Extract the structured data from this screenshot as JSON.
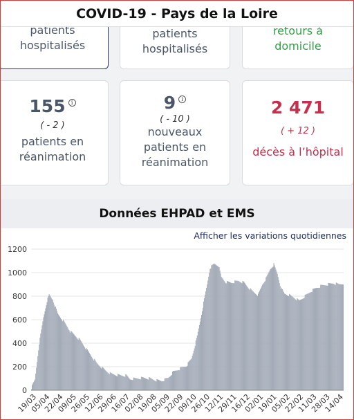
{
  "header": {
    "title": "COVID-19 - Pays de la Loire"
  },
  "cards_row1": [
    {
      "label_lines": [
        "patients",
        "hospitalisés"
      ],
      "selected": true
    },
    {
      "label_lines": [
        "patients",
        "hospitalisés"
      ]
    },
    {
      "label_lines": [
        "retours à",
        "domicile"
      ]
    }
  ],
  "cards_row2": [
    {
      "value": "155",
      "delta": "( - 2 )",
      "label_lines": [
        "patients en",
        "réanimation"
      ],
      "info": "i"
    },
    {
      "value": "9",
      "delta": "( - 10 )",
      "label_lines": [
        "nouveaux",
        "patients en",
        "réanimation"
      ],
      "info": "i"
    },
    {
      "value": "2 471",
      "delta": "( + 12 )",
      "label_lines": [
        "décès à l’hôpital"
      ]
    }
  ],
  "section": {
    "title": "Données EHPAD et EMS"
  },
  "chart_link": "Afficher les variations quotidiennes",
  "colors": {
    "bar": "#a3abb7",
    "red": "#c62f4d",
    "green": "#2f9f47",
    "text": "#4a5668"
  },
  "chart_data": {
    "type": "bar",
    "title": "",
    "xlabel": "",
    "ylabel": "",
    "ylim": [
      0,
      1200
    ],
    "yticks": [
      0,
      200,
      400,
      600,
      800,
      1000,
      1200
    ],
    "xtick_labels": [
      "19/03",
      "05/04",
      "22/04",
      "09/05",
      "26/05",
      "12/06",
      "29/06",
      "16/07",
      "02/08",
      "19/08",
      "05/09",
      "22/09",
      "09/10",
      "26/10",
      "12/11",
      "29/11",
      "16/12",
      "02/01",
      "19/01",
      "05/02",
      "22/02",
      "11/03",
      "28/03",
      "14/04"
    ],
    "anchors": [
      [
        0,
        20
      ],
      [
        5,
        90
      ],
      [
        11,
        400
      ],
      [
        17,
        620
      ],
      [
        22,
        760
      ],
      [
        25,
        810
      ],
      [
        30,
        770
      ],
      [
        37,
        650
      ],
      [
        45,
        590
      ],
      [
        55,
        500
      ],
      [
        68,
        430
      ],
      [
        80,
        330
      ],
      [
        92,
        230
      ],
      [
        104,
        170
      ],
      [
        112,
        140
      ],
      [
        120,
        130
      ],
      [
        128,
        125
      ],
      [
        134,
        125
      ],
      [
        139,
        95
      ],
      [
        148,
        100
      ],
      [
        158,
        105
      ],
      [
        167,
        100
      ],
      [
        176,
        85
      ],
      [
        184,
        80
      ],
      [
        193,
        105
      ],
      [
        200,
        155
      ],
      [
        210,
        185
      ],
      [
        219,
        210
      ],
      [
        226,
        270
      ],
      [
        234,
        460
      ],
      [
        241,
        680
      ],
      [
        248,
        900
      ],
      [
        252,
        1040
      ],
      [
        258,
        1075
      ],
      [
        264,
        1060
      ],
      [
        268,
        960
      ],
      [
        274,
        920
      ],
      [
        282,
        915
      ],
      [
        292,
        930
      ],
      [
        300,
        915
      ],
      [
        305,
        880
      ],
      [
        312,
        840
      ],
      [
        320,
        810
      ],
      [
        326,
        900
      ],
      [
        332,
        960
      ],
      [
        337,
        1030
      ],
      [
        342,
        1070
      ],
      [
        347,
        990
      ],
      [
        352,
        870
      ],
      [
        357,
        820
      ],
      [
        363,
        810
      ],
      [
        370,
        790
      ],
      [
        378,
        760
      ],
      [
        386,
        800
      ],
      [
        394,
        840
      ],
      [
        402,
        870
      ],
      [
        410,
        890
      ],
      [
        418,
        900
      ],
      [
        426,
        910
      ],
      [
        434,
        900
      ],
      [
        440,
        910
      ]
    ]
  }
}
